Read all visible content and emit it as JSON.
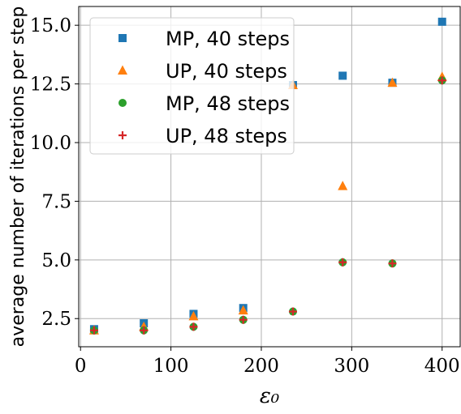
{
  "chart_data": {
    "type": "scatter",
    "xlabel": "ε₀",
    "ylabel": "average number of iterations per step",
    "xlim": [
      -2,
      420
    ],
    "ylim": [
      1.3,
      15.8
    ],
    "xticks": [
      0,
      100,
      200,
      300,
      400
    ],
    "xtick_labels": [
      "0",
      "100",
      "200",
      "300",
      "400"
    ],
    "yticks": [
      2.5,
      5.0,
      7.5,
      10.0,
      12.5,
      15.0
    ],
    "ytick_labels": [
      "2.5",
      "5.0",
      "7.5",
      "10.0",
      "12.5",
      "15.0"
    ],
    "grid": true,
    "legend_position": "top-left",
    "x": [
      15,
      70,
      125,
      180,
      235,
      290,
      345,
      400
    ],
    "series": [
      {
        "name": "MP, 40 steps",
        "marker": "square",
        "color": "#1f77b4",
        "values": [
          2.05,
          2.3,
          2.7,
          2.95,
          12.45,
          12.85,
          12.55,
          15.15
        ]
      },
      {
        "name": "UP, 40 steps",
        "marker": "triangle",
        "color": "#ff7f0e",
        "values": [
          2.0,
          2.15,
          2.6,
          2.85,
          12.45,
          8.15,
          12.55,
          12.8
        ]
      },
      {
        "name": "MP, 48 steps",
        "marker": "circle",
        "color": "#2ca02c",
        "values": [
          2.0,
          2.0,
          2.15,
          2.45,
          2.8,
          4.9,
          4.85,
          12.65
        ]
      },
      {
        "name": "UP, 48 steps",
        "marker": "plus",
        "color": "#d62728",
        "values": [
          2.0,
          2.0,
          2.15,
          2.45,
          2.8,
          4.9,
          4.85,
          12.65
        ]
      }
    ]
  }
}
